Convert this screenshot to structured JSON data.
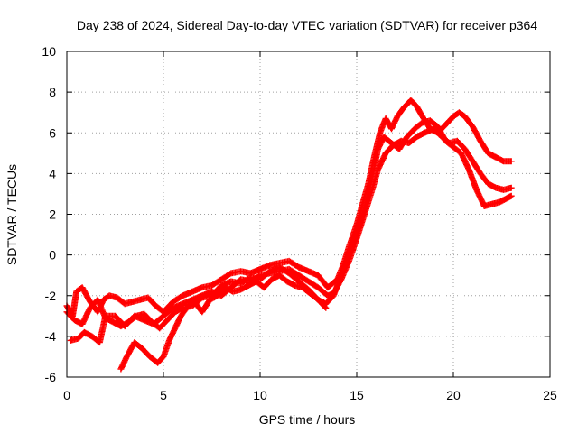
{
  "chart_data": {
    "type": "scatter",
    "title": "Day 238 of 2024, Sidereal Day-to-day VTEC variation (SDTVAR) for receiver p364",
    "xlabel": "GPS time / hours",
    "ylabel": "SDTVAR / TECUs",
    "xlim": [
      0,
      25
    ],
    "ylim": [
      -6,
      10
    ],
    "xticks": [
      0,
      5,
      10,
      15,
      20,
      25
    ],
    "yticks": [
      -6,
      -4,
      -2,
      0,
      2,
      4,
      6,
      8,
      10
    ],
    "grid": true,
    "marker": "+",
    "color": "#ff0000",
    "series": [
      {
        "name": "track-1",
        "points": [
          [
            0.0,
            -2.5
          ],
          [
            0.3,
            -3.0
          ],
          [
            0.5,
            -1.8
          ],
          [
            0.8,
            -1.6
          ],
          [
            1.2,
            -2.3
          ],
          [
            1.6,
            -2.8
          ],
          [
            1.9,
            -2.2
          ],
          [
            2.2,
            -2.0
          ],
          [
            2.6,
            -2.1
          ],
          [
            3.0,
            -2.4
          ],
          [
            3.4,
            -2.3
          ],
          [
            3.8,
            -2.2
          ],
          [
            4.2,
            -2.1
          ],
          [
            4.6,
            -2.5
          ],
          [
            5.0,
            -2.8
          ],
          [
            5.5,
            -2.3
          ],
          [
            6.0,
            -2.0
          ],
          [
            6.5,
            -1.8
          ],
          [
            7.0,
            -1.6
          ],
          [
            7.5,
            -1.5
          ],
          [
            8.0,
            -1.2
          ],
          [
            8.5,
            -0.9
          ],
          [
            9.0,
            -0.8
          ],
          [
            9.5,
            -0.9
          ],
          [
            10.0,
            -0.7
          ],
          [
            10.5,
            -0.5
          ],
          [
            11.0,
            -0.4
          ],
          [
            11.5,
            -0.3
          ],
          [
            12.0,
            -0.6
          ],
          [
            12.5,
            -0.8
          ],
          [
            13.0,
            -1.0
          ],
          [
            13.5,
            -1.6
          ],
          [
            14.0,
            -1.2
          ],
          [
            14.3,
            -0.5
          ],
          [
            14.6,
            0.4
          ],
          [
            15.0,
            1.5
          ],
          [
            15.3,
            2.5
          ],
          [
            15.6,
            3.5
          ],
          [
            15.9,
            4.8
          ],
          [
            16.2,
            6.0
          ],
          [
            16.5,
            6.7
          ],
          [
            16.8,
            6.2
          ],
          [
            17.1,
            6.8
          ],
          [
            17.4,
            7.2
          ],
          [
            17.8,
            7.6
          ],
          [
            18.1,
            7.3
          ],
          [
            18.4,
            6.8
          ],
          [
            18.8,
            6.2
          ],
          [
            19.2,
            6.0
          ],
          [
            19.6,
            6.4
          ],
          [
            20.0,
            6.8
          ],
          [
            20.3,
            7.0
          ],
          [
            20.6,
            6.8
          ],
          [
            21.0,
            6.3
          ],
          [
            21.4,
            5.6
          ],
          [
            21.8,
            5.0
          ],
          [
            22.2,
            4.8
          ],
          [
            22.6,
            4.6
          ],
          [
            23.0,
            4.6
          ]
        ]
      },
      {
        "name": "track-2",
        "points": [
          [
            0.2,
            -4.2
          ],
          [
            0.6,
            -4.1
          ],
          [
            0.9,
            -3.8
          ],
          [
            1.3,
            -4.0
          ],
          [
            1.7,
            -4.3
          ],
          [
            2.0,
            -3.0
          ],
          [
            2.5,
            -3.0
          ],
          [
            3.0,
            -3.5
          ],
          [
            3.5,
            -3.0
          ],
          [
            4.0,
            -3.2
          ],
          [
            4.5,
            -3.4
          ],
          [
            5.0,
            -3.0
          ],
          [
            5.5,
            -2.6
          ],
          [
            6.0,
            -2.4
          ],
          [
            6.5,
            -2.2
          ],
          [
            7.0,
            -2.0
          ],
          [
            7.5,
            -1.8
          ],
          [
            8.0,
            -2.0
          ],
          [
            8.5,
            -1.6
          ],
          [
            9.0,
            -1.2
          ],
          [
            9.5,
            -1.3
          ],
          [
            10.0,
            -1.0
          ],
          [
            10.5,
            -0.9
          ],
          [
            11.0,
            -0.8
          ],
          [
            11.5,
            -0.7
          ],
          [
            12.0,
            -1.0
          ],
          [
            12.5,
            -1.3
          ],
          [
            13.0,
            -1.6
          ],
          [
            13.5,
            -2.0
          ],
          [
            13.8,
            -1.9
          ],
          [
            14.2,
            -1.2
          ],
          [
            14.6,
            -0.3
          ],
          [
            15.0,
            0.8
          ],
          [
            15.4,
            2.0
          ],
          [
            15.8,
            3.2
          ],
          [
            16.1,
            4.2
          ],
          [
            16.5,
            5.0
          ],
          [
            16.9,
            5.4
          ],
          [
            17.3,
            5.6
          ],
          [
            17.7,
            5.5
          ],
          [
            18.1,
            5.8
          ],
          [
            18.5,
            6.0
          ],
          [
            19.0,
            6.2
          ],
          [
            19.4,
            5.8
          ],
          [
            19.8,
            5.5
          ],
          [
            20.2,
            5.6
          ],
          [
            20.6,
            5.2
          ],
          [
            21.0,
            4.6
          ],
          [
            21.4,
            4.0
          ],
          [
            21.8,
            3.5
          ],
          [
            22.2,
            3.3
          ],
          [
            22.6,
            3.2
          ],
          [
            23.0,
            3.3
          ]
        ]
      },
      {
        "name": "track-3",
        "points": [
          [
            0.0,
            -2.8
          ],
          [
            0.4,
            -3.2
          ],
          [
            0.8,
            -3.4
          ],
          [
            1.2,
            -2.6
          ],
          [
            1.6,
            -2.2
          ],
          [
            2.0,
            -3.1
          ],
          [
            2.4,
            -3.3
          ],
          [
            2.8,
            -3.5
          ],
          [
            3.2,
            -3.3
          ],
          [
            3.6,
            -3.0
          ],
          [
            4.0,
            -2.9
          ],
          [
            4.4,
            -3.3
          ],
          [
            4.8,
            -3.6
          ],
          [
            5.2,
            -3.2
          ],
          [
            5.6,
            -2.8
          ],
          [
            6.0,
            -2.6
          ],
          [
            6.5,
            -2.5
          ],
          [
            7.0,
            -2.1
          ],
          [
            7.5,
            -2.0
          ],
          [
            8.0,
            -1.5
          ],
          [
            8.5,
            -1.3
          ],
          [
            9.0,
            -1.4
          ],
          [
            9.5,
            -1.1
          ],
          [
            10.0,
            -1.2
          ],
          [
            10.5,
            -0.8
          ],
          [
            11.0,
            -0.6
          ],
          [
            11.5,
            -0.9
          ],
          [
            12.0,
            -1.3
          ],
          [
            12.5,
            -1.7
          ],
          [
            13.0,
            -2.2
          ],
          [
            13.4,
            -2.4
          ],
          [
            13.8,
            -2.0
          ],
          [
            14.2,
            -1.0
          ],
          [
            14.6,
            0.0
          ],
          [
            15.0,
            1.0
          ],
          [
            15.4,
            2.3
          ],
          [
            15.8,
            3.8
          ],
          [
            16.1,
            5.2
          ],
          [
            16.4,
            5.8
          ],
          [
            16.8,
            5.5
          ],
          [
            17.2,
            5.2
          ],
          [
            17.6,
            5.8
          ],
          [
            18.0,
            6.2
          ],
          [
            18.4,
            6.5
          ],
          [
            18.8,
            6.6
          ],
          [
            19.2,
            6.3
          ],
          [
            19.6,
            5.6
          ],
          [
            20.0,
            5.3
          ],
          [
            20.4,
            5.0
          ],
          [
            20.8,
            4.2
          ],
          [
            21.2,
            3.2
          ],
          [
            21.6,
            2.4
          ],
          [
            22.0,
            2.5
          ],
          [
            22.4,
            2.6
          ],
          [
            22.8,
            2.8
          ],
          [
            23.0,
            2.9
          ]
        ]
      },
      {
        "name": "track-4",
        "points": [
          [
            2.8,
            -5.6
          ],
          [
            3.1,
            -5.0
          ],
          [
            3.5,
            -4.3
          ],
          [
            3.9,
            -4.6
          ],
          [
            4.3,
            -5.0
          ],
          [
            4.7,
            -5.3
          ],
          [
            5.0,
            -5.0
          ],
          [
            5.3,
            -4.2
          ],
          [
            5.6,
            -3.6
          ],
          [
            5.9,
            -3.0
          ],
          [
            6.2,
            -2.6
          ],
          [
            6.6,
            -2.3
          ],
          [
            7.0,
            -2.8
          ],
          [
            7.4,
            -2.2
          ],
          [
            7.8,
            -2.0
          ],
          [
            8.2,
            -1.6
          ],
          [
            8.6,
            -1.8
          ],
          [
            9.0,
            -1.7
          ],
          [
            9.4,
            -1.5
          ],
          [
            9.8,
            -1.3
          ],
          [
            10.2,
            -1.6
          ],
          [
            10.6,
            -1.2
          ],
          [
            11.0,
            -1.0
          ],
          [
            11.4,
            -1.3
          ],
          [
            11.8,
            -1.5
          ],
          [
            12.2,
            -1.6
          ],
          [
            12.6,
            -1.9
          ],
          [
            13.0,
            -2.2
          ],
          [
            13.4,
            -2.6
          ]
        ]
      }
    ]
  }
}
